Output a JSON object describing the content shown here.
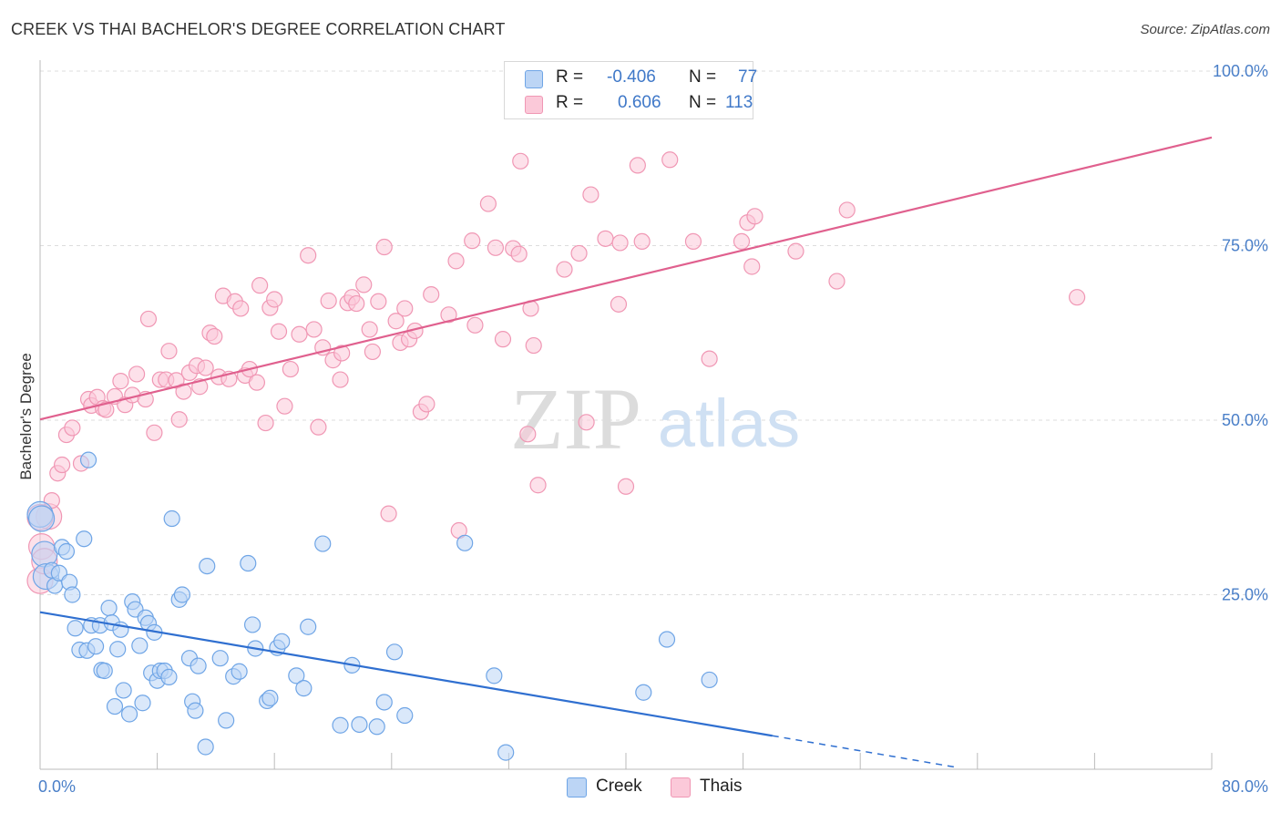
{
  "header": {
    "title": "CREEK VS THAI BACHELOR'S DEGREE CORRELATION CHART",
    "source": "Source: ZipAtlas.com"
  },
  "watermark": {
    "zip": "ZIP",
    "atlas": "atlas"
  },
  "legend": {
    "creek": {
      "r_label": "R =",
      "r_value": "-0.406",
      "n_label": "N =",
      "n_value": "77",
      "color": "#6fa5e6"
    },
    "thais": {
      "r_label": "R =",
      "r_value": "0.606",
      "n_label": "N =",
      "n_value": "113",
      "color": "#f097b4"
    }
  },
  "bottom_legend": {
    "creek": "Creek",
    "thais": "Thais"
  },
  "chart_data": {
    "type": "scatter",
    "title": "CREEK VS THAI BACHELOR'S DEGREE CORRELATION CHART",
    "xlabel": "",
    "ylabel": "Bachelor's Degree",
    "xlim": [
      0,
      80
    ],
    "ylim": [
      0,
      100
    ],
    "x_ticks": [
      "0.0%",
      "80.0%"
    ],
    "y_ticks": [
      "25.0%",
      "50.0%",
      "75.0%",
      "100.0%"
    ],
    "grid": true,
    "legend_position": "top-center",
    "series": [
      {
        "name": "Creek",
        "color": "#6fa5e6",
        "line_color": "#2f6fd0",
        "trend": {
          "x_start": 0,
          "y_start": 22.5,
          "x_solid_end": 50,
          "y_solid_end": 4.8,
          "x_dashed_end": 62.5,
          "y_dashed_end": 0.3
        },
        "points": [
          [
            0.0,
            36.5
          ],
          [
            0.3,
            30.8
          ],
          [
            0.4,
            27.6
          ],
          [
            0.8,
            28.5
          ],
          [
            1.0,
            26.3
          ],
          [
            1.3,
            28.1
          ],
          [
            1.5,
            31.8
          ],
          [
            1.8,
            31.2
          ],
          [
            2.0,
            26.8
          ],
          [
            2.2,
            25.0
          ],
          [
            2.4,
            20.2
          ],
          [
            2.7,
            17.1
          ],
          [
            3.0,
            33.0
          ],
          [
            3.2,
            17.0
          ],
          [
            3.3,
            44.3
          ],
          [
            3.5,
            20.6
          ],
          [
            3.8,
            17.6
          ],
          [
            4.1,
            20.6
          ],
          [
            4.2,
            14.2
          ],
          [
            4.4,
            14.1
          ],
          [
            4.7,
            23.1
          ],
          [
            4.9,
            21.0
          ],
          [
            5.1,
            9.0
          ],
          [
            5.3,
            17.2
          ],
          [
            5.5,
            20.0
          ],
          [
            5.7,
            11.3
          ],
          [
            6.1,
            7.9
          ],
          [
            6.3,
            24.0
          ],
          [
            6.5,
            22.9
          ],
          [
            6.8,
            17.7
          ],
          [
            7.0,
            9.5
          ],
          [
            7.2,
            21.7
          ],
          [
            7.4,
            20.9
          ],
          [
            7.6,
            13.8
          ],
          [
            7.8,
            19.6
          ],
          [
            8.0,
            12.7
          ],
          [
            8.2,
            14.1
          ],
          [
            8.5,
            14.1
          ],
          [
            8.8,
            13.2
          ],
          [
            9.0,
            35.9
          ],
          [
            9.5,
            24.3
          ],
          [
            9.7,
            25.0
          ],
          [
            10.2,
            15.9
          ],
          [
            10.4,
            9.7
          ],
          [
            10.6,
            8.4
          ],
          [
            10.8,
            14.8
          ],
          [
            11.3,
            3.2
          ],
          [
            11.4,
            29.1
          ],
          [
            12.3,
            15.9
          ],
          [
            12.7,
            7.0
          ],
          [
            13.2,
            13.3
          ],
          [
            13.6,
            14.0
          ],
          [
            14.2,
            29.5
          ],
          [
            14.5,
            20.7
          ],
          [
            14.7,
            17.3
          ],
          [
            15.5,
            9.8
          ],
          [
            15.7,
            10.2
          ],
          [
            16.2,
            17.4
          ],
          [
            16.5,
            18.3
          ],
          [
            17.5,
            13.4
          ],
          [
            18.0,
            11.6
          ],
          [
            18.3,
            20.4
          ],
          [
            19.3,
            32.3
          ],
          [
            20.5,
            6.3
          ],
          [
            21.3,
            14.9
          ],
          [
            21.8,
            6.4
          ],
          [
            23.0,
            6.1
          ],
          [
            23.5,
            9.6
          ],
          [
            24.2,
            16.8
          ],
          [
            24.9,
            7.7
          ],
          [
            29.0,
            32.4
          ],
          [
            31.0,
            13.4
          ],
          [
            31.8,
            2.4
          ],
          [
            41.2,
            11.0
          ],
          [
            42.8,
            18.6
          ],
          [
            45.7,
            12.8
          ],
          [
            0.1,
            35.9
          ]
        ]
      },
      {
        "name": "Thais",
        "color": "#f097b4",
        "line_color": "#e0608e",
        "trend": {
          "x_start": 0,
          "y_start": 50.1,
          "x_end": 80,
          "y_end": 90.5
        },
        "points": [
          [
            0.0,
            27.0
          ],
          [
            0.1,
            31.9
          ],
          [
            0.3,
            29.8
          ],
          [
            0.6,
            36.2
          ],
          [
            0.8,
            38.5
          ],
          [
            1.2,
            42.4
          ],
          [
            1.5,
            43.6
          ],
          [
            1.8,
            47.9
          ],
          [
            2.2,
            48.9
          ],
          [
            2.8,
            43.8
          ],
          [
            3.3,
            53.0
          ],
          [
            3.5,
            52.1
          ],
          [
            3.9,
            53.3
          ],
          [
            4.3,
            51.7
          ],
          [
            4.5,
            51.5
          ],
          [
            5.1,
            53.4
          ],
          [
            5.5,
            55.6
          ],
          [
            5.8,
            52.2
          ],
          [
            6.3,
            53.6
          ],
          [
            6.6,
            56.6
          ],
          [
            7.2,
            53.0
          ],
          [
            7.4,
            64.5
          ],
          [
            7.8,
            48.2
          ],
          [
            8.2,
            55.8
          ],
          [
            8.6,
            55.8
          ],
          [
            8.8,
            59.9
          ],
          [
            9.3,
            55.7
          ],
          [
            9.5,
            50.1
          ],
          [
            9.8,
            54.1
          ],
          [
            10.2,
            56.8
          ],
          [
            10.7,
            57.8
          ],
          [
            10.9,
            54.8
          ],
          [
            11.3,
            57.5
          ],
          [
            11.6,
            62.5
          ],
          [
            11.9,
            62.0
          ],
          [
            12.2,
            56.2
          ],
          [
            12.5,
            67.8
          ],
          [
            12.9,
            55.9
          ],
          [
            13.3,
            67.0
          ],
          [
            13.7,
            66.0
          ],
          [
            14.0,
            56.4
          ],
          [
            14.3,
            57.3
          ],
          [
            14.8,
            55.4
          ],
          [
            15.0,
            69.3
          ],
          [
            15.4,
            49.6
          ],
          [
            15.7,
            66.1
          ],
          [
            16.0,
            67.3
          ],
          [
            16.3,
            62.7
          ],
          [
            16.7,
            52.0
          ],
          [
            17.1,
            57.3
          ],
          [
            17.7,
            62.3
          ],
          [
            18.3,
            73.6
          ],
          [
            18.7,
            63.0
          ],
          [
            19.0,
            49.0
          ],
          [
            19.3,
            60.4
          ],
          [
            19.7,
            67.1
          ],
          [
            20.0,
            58.6
          ],
          [
            20.5,
            55.8
          ],
          [
            20.6,
            59.6
          ],
          [
            21.0,
            66.8
          ],
          [
            21.3,
            67.6
          ],
          [
            21.6,
            66.7
          ],
          [
            22.1,
            69.4
          ],
          [
            22.5,
            63.0
          ],
          [
            22.7,
            59.8
          ],
          [
            23.1,
            67.0
          ],
          [
            23.5,
            74.8
          ],
          [
            23.8,
            36.6
          ],
          [
            24.3,
            64.2
          ],
          [
            24.6,
            61.1
          ],
          [
            24.9,
            66.0
          ],
          [
            25.2,
            61.6
          ],
          [
            25.6,
            62.8
          ],
          [
            26.0,
            51.2
          ],
          [
            26.4,
            52.3
          ],
          [
            26.7,
            68.0
          ],
          [
            27.9,
            65.1
          ],
          [
            28.4,
            72.8
          ],
          [
            28.6,
            34.2
          ],
          [
            29.5,
            75.7
          ],
          [
            29.7,
            63.6
          ],
          [
            30.6,
            81.0
          ],
          [
            31.1,
            74.7
          ],
          [
            31.6,
            61.6
          ],
          [
            32.3,
            74.6
          ],
          [
            32.7,
            73.8
          ],
          [
            32.8,
            87.1
          ],
          [
            33.3,
            48.0
          ],
          [
            33.5,
            66.0
          ],
          [
            33.7,
            60.7
          ],
          [
            34.0,
            40.7
          ],
          [
            35.8,
            71.6
          ],
          [
            36.8,
            73.9
          ],
          [
            37.3,
            49.7
          ],
          [
            37.6,
            82.3
          ],
          [
            38.6,
            76.0
          ],
          [
            39.5,
            66.6
          ],
          [
            39.6,
            75.4
          ],
          [
            40.0,
            40.5
          ],
          [
            40.8,
            86.5
          ],
          [
            41.1,
            75.6
          ],
          [
            43.0,
            87.3
          ],
          [
            44.6,
            75.6
          ],
          [
            45.7,
            58.8
          ],
          [
            47.9,
            75.6
          ],
          [
            48.3,
            78.3
          ],
          [
            48.6,
            72.0
          ],
          [
            48.8,
            79.2
          ],
          [
            51.6,
            74.2
          ],
          [
            54.4,
            69.9
          ],
          [
            55.1,
            80.1
          ],
          [
            70.8,
            67.6
          ],
          [
            0.0,
            36.1
          ]
        ]
      }
    ]
  }
}
